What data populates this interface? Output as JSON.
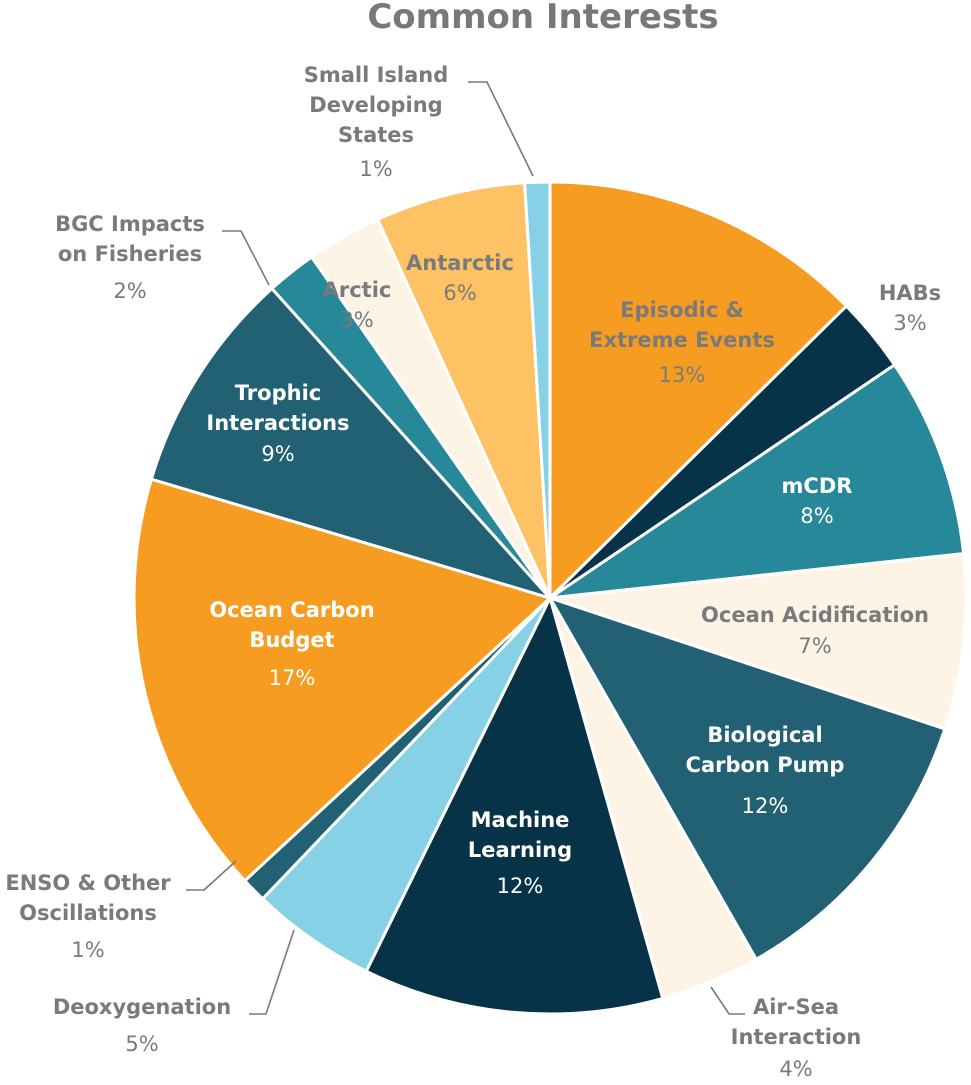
{
  "chart_data": {
    "type": "pie",
    "title": "Common Interests",
    "slices": [
      {
        "label": "Episodic & Extreme Events",
        "value": 13,
        "value_label": "13%",
        "color": "#f59c21",
        "text_color": "#7a7a7d"
      },
      {
        "label": "HABs",
        "value": 3,
        "value_label": "3%",
        "color": "#073349",
        "text_color": "#7a7a7d"
      },
      {
        "label": "mCDR",
        "value": 8,
        "value_label": "8%",
        "color": "#268899",
        "text_color": "#ffffff"
      },
      {
        "label": "Ocean Acidification",
        "value": 7,
        "value_label": "7%",
        "color": "#fdf4e6",
        "text_color": "#7a7a7d"
      },
      {
        "label": "Biological Carbon Pump",
        "value": 12,
        "value_label": "12%",
        "color": "#226173",
        "text_color": "#ffffff"
      },
      {
        "label": "Air-Sea Interaction",
        "value": 4,
        "value_label": "4%",
        "color": "#fdf4e6",
        "text_color": "#7a7a7d"
      },
      {
        "label": "Machine Learning",
        "value": 12,
        "value_label": "12%",
        "color": "#073349",
        "text_color": "#ffffff"
      },
      {
        "label": "Deoxygenation",
        "value": 5,
        "value_label": "5%",
        "color": "#86d1e6",
        "text_color": "#7a7a7d"
      },
      {
        "label": "ENSO & Other Oscillations",
        "value": 1,
        "value_label": "1%",
        "color": "#226173",
        "text_color": "#7a7a7d"
      },
      {
        "label": "Ocean Carbon Budget",
        "value": 17,
        "value_label": "17%",
        "color": "#f59c21",
        "text_color": "#ffffff"
      },
      {
        "label": "Trophic Interactions",
        "value": 9,
        "value_label": "9%",
        "color": "#226173",
        "text_color": "#ffffff"
      },
      {
        "label": "BGC Impacts on Fisheries",
        "value": 2,
        "value_label": "2%",
        "color": "#268899",
        "text_color": "#7a7a7d"
      },
      {
        "label": "Arctic",
        "value": 3,
        "value_label": "3%",
        "color": "#fdf4e6",
        "text_color": "#7a7a7d"
      },
      {
        "label": "Antarctic",
        "value": 6,
        "value_label": "6%",
        "color": "#fdc263",
        "text_color": "#7a7a7d"
      },
      {
        "label": "Small Island Developing States",
        "value": 1,
        "value_label": "1%",
        "color": "#86d1e6",
        "text_color": "#7a7a7d"
      }
    ]
  }
}
